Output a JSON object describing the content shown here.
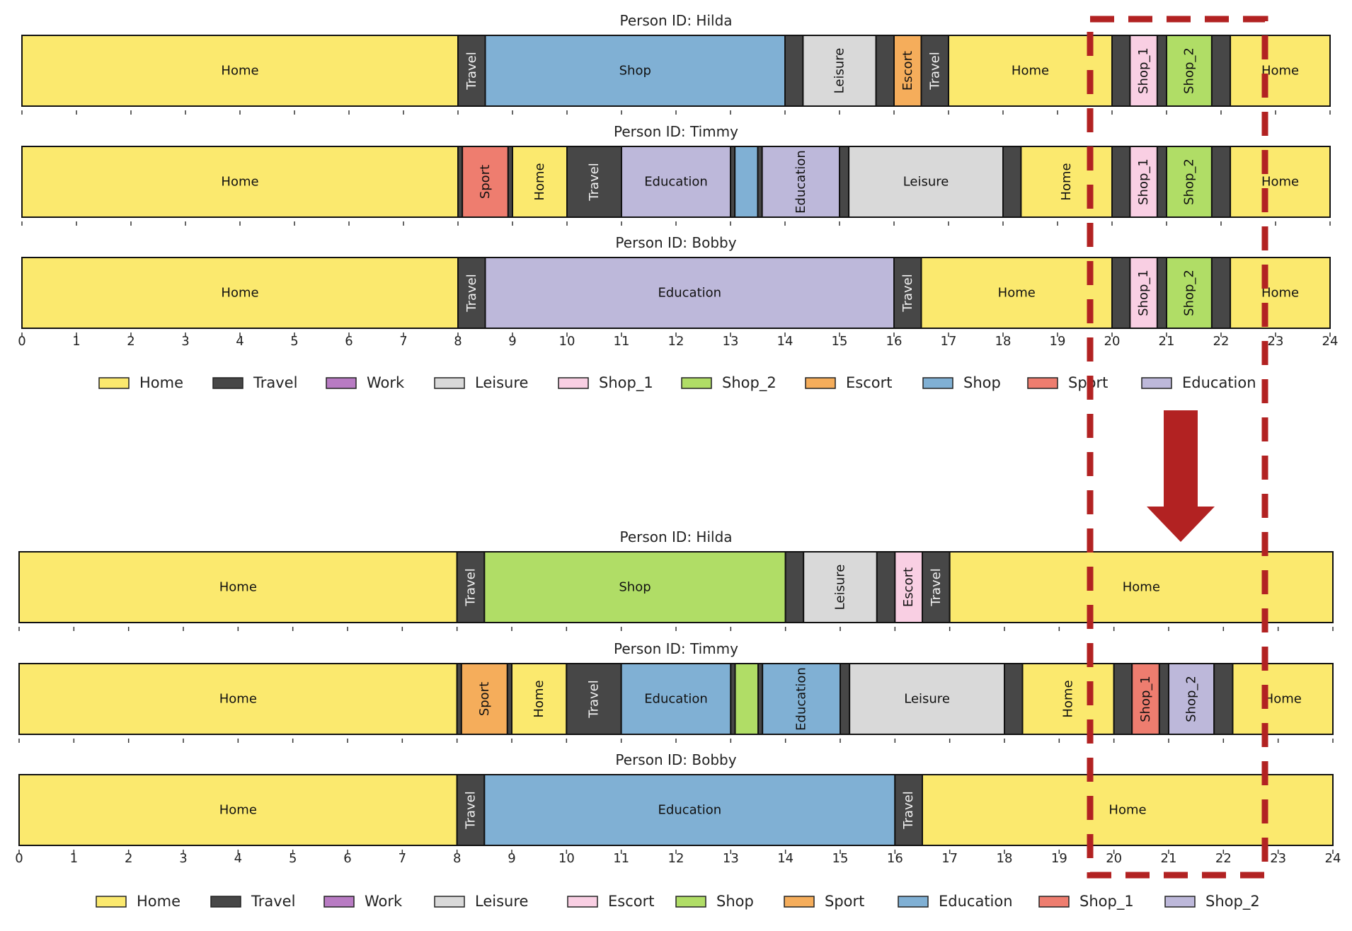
{
  "chart_data": [
    {
      "type": "gantt",
      "x_ticks": [
        "0",
        "1",
        "2",
        "3",
        "4",
        "5",
        "6",
        "7",
        "8",
        "9",
        "10",
        "11",
        "12",
        "13",
        "14",
        "15",
        "16",
        "17",
        "18",
        "19",
        "20",
        "21",
        "22",
        "23",
        "24"
      ],
      "xlim": [
        0,
        24
      ],
      "legend": [
        {
          "label": "Home",
          "color": "#fbe96e"
        },
        {
          "label": "Travel",
          "color": "#474747"
        },
        {
          "label": "Work",
          "color": "#b87bc3"
        },
        {
          "label": "Leisure",
          "color": "#d9d9d9"
        },
        {
          "label": "Shop_1",
          "color": "#f9cfe3"
        },
        {
          "label": "Shop_2",
          "color": "#b0dd66"
        },
        {
          "label": "Escort",
          "color": "#f5ad5b"
        },
        {
          "label": "Shop",
          "color": "#80b0d4"
        },
        {
          "label": "Sport",
          "color": "#ee7d6f"
        },
        {
          "label": "Education",
          "color": "#bdb8da"
        }
      ],
      "rows": [
        {
          "title": "Person ID: Hilda",
          "segments": [
            {
              "act": "Home",
              "label": "Home",
              "start": 0,
              "end": 8
            },
            {
              "act": "Travel",
              "label": "Travel",
              "start": 8,
              "end": 8.5
            },
            {
              "act": "Shop",
              "label": "Shop",
              "start": 8.5,
              "end": 14
            },
            {
              "act": "Travel",
              "label": "",
              "start": 14,
              "end": 14.33
            },
            {
              "act": "Leisure",
              "label": "Leisure",
              "start": 14.33,
              "end": 15.67
            },
            {
              "act": "Travel",
              "label": "",
              "start": 15.67,
              "end": 16
            },
            {
              "act": "Escort",
              "label": "Escort",
              "start": 16,
              "end": 16.5
            },
            {
              "act": "Travel",
              "label": "Travel",
              "start": 16.5,
              "end": 17
            },
            {
              "act": "Home",
              "label": "Home",
              "start": 17,
              "end": 20
            },
            {
              "act": "Travel",
              "label": "",
              "start": 20,
              "end": 20.33
            },
            {
              "act": "Shop_1",
              "label": "Shop_1",
              "start": 20.33,
              "end": 20.83
            },
            {
              "act": "Travel",
              "label": "",
              "start": 20.83,
              "end": 21
            },
            {
              "act": "Shop_2",
              "label": "Shop_2",
              "start": 21,
              "end": 21.83
            },
            {
              "act": "Travel",
              "label": "",
              "start": 21.83,
              "end": 22.17
            },
            {
              "act": "Home",
              "label": "Home",
              "start": 22.17,
              "end": 24
            }
          ]
        },
        {
          "title": "Person ID: Timmy",
          "segments": [
            {
              "act": "Home",
              "label": "Home",
              "start": 0,
              "end": 8
            },
            {
              "act": "Travel",
              "label": "",
              "start": 8,
              "end": 8.08
            },
            {
              "act": "Sport",
              "label": "Sport",
              "start": 8.08,
              "end": 8.92
            },
            {
              "act": "Travel",
              "label": "",
              "start": 8.92,
              "end": 9
            },
            {
              "act": "Home",
              "label": "Home",
              "start": 9,
              "end": 10
            },
            {
              "act": "Travel",
              "label": "Travel",
              "start": 10,
              "end": 11
            },
            {
              "act": "Education",
              "label": "Education",
              "start": 11,
              "end": 13
            },
            {
              "act": "Travel",
              "label": "",
              "start": 13,
              "end": 13.08
            },
            {
              "act": "Shop",
              "label": "",
              "start": 13.08,
              "end": 13.5
            },
            {
              "act": "Travel",
              "label": "",
              "start": 13.5,
              "end": 13.58
            },
            {
              "act": "Education",
              "label": "Education",
              "start": 13.58,
              "end": 15
            },
            {
              "act": "Travel",
              "label": "",
              "start": 15,
              "end": 15.17
            },
            {
              "act": "Leisure",
              "label": "Leisure",
              "start": 15.17,
              "end": 18
            },
            {
              "act": "Travel",
              "label": "",
              "start": 18,
              "end": 18.33
            },
            {
              "act": "Home",
              "label": "Home",
              "start": 18.33,
              "end": 20
            },
            {
              "act": "Travel",
              "label": "",
              "start": 20,
              "end": 20.33
            },
            {
              "act": "Shop_1",
              "label": "Shop_1",
              "start": 20.33,
              "end": 20.83
            },
            {
              "act": "Travel",
              "label": "",
              "start": 20.83,
              "end": 21
            },
            {
              "act": "Shop_2",
              "label": "Shop_2",
              "start": 21,
              "end": 21.83
            },
            {
              "act": "Travel",
              "label": "",
              "start": 21.83,
              "end": 22.17
            },
            {
              "act": "Home",
              "label": "Home",
              "start": 22.17,
              "end": 24
            }
          ]
        },
        {
          "title": "Person ID: Bobby",
          "segments": [
            {
              "act": "Home",
              "label": "Home",
              "start": 0,
              "end": 8
            },
            {
              "act": "Travel",
              "label": "Travel",
              "start": 8,
              "end": 8.5
            },
            {
              "act": "Education",
              "label": "Education",
              "start": 8.5,
              "end": 16
            },
            {
              "act": "Travel",
              "label": "Travel",
              "start": 16,
              "end": 16.5
            },
            {
              "act": "Home",
              "label": "Home",
              "start": 16.5,
              "end": 20
            },
            {
              "act": "Travel",
              "label": "",
              "start": 20,
              "end": 20.33
            },
            {
              "act": "Shop_1",
              "label": "Shop_1",
              "start": 20.33,
              "end": 20.83
            },
            {
              "act": "Travel",
              "label": "",
              "start": 20.83,
              "end": 21
            },
            {
              "act": "Shop_2",
              "label": "Shop_2",
              "start": 21,
              "end": 21.83
            },
            {
              "act": "Travel",
              "label": "",
              "start": 21.83,
              "end": 22.17
            },
            {
              "act": "Home",
              "label": "Home",
              "start": 22.17,
              "end": 24
            }
          ]
        }
      ]
    },
    {
      "type": "gantt",
      "x_ticks": [
        "0",
        "1",
        "2",
        "3",
        "4",
        "5",
        "6",
        "7",
        "8",
        "9",
        "10",
        "11",
        "12",
        "13",
        "14",
        "15",
        "16",
        "17",
        "18",
        "19",
        "20",
        "21",
        "22",
        "23",
        "24"
      ],
      "xlim": [
        0,
        24
      ],
      "legend": [
        {
          "label": "Home",
          "color": "#fbe96e"
        },
        {
          "label": "Travel",
          "color": "#474747"
        },
        {
          "label": "Work",
          "color": "#b87bc3"
        },
        {
          "label": "Leisure",
          "color": "#d9d9d9"
        },
        {
          "label": "Escort",
          "color": "#f9cfe3"
        },
        {
          "label": "Shop",
          "color": "#b0dd66"
        },
        {
          "label": "Sport",
          "color": "#f5ad5b"
        },
        {
          "label": "Education",
          "color": "#80b0d4"
        },
        {
          "label": "Shop_1",
          "color": "#ee7d6f"
        },
        {
          "label": "Shop_2",
          "color": "#bdb8da"
        }
      ],
      "rows": [
        {
          "title": "Person ID: Hilda",
          "segments": [
            {
              "act": "Home",
              "label": "Home",
              "start": 0,
              "end": 8
            },
            {
              "act": "Travel",
              "label": "Travel",
              "start": 8,
              "end": 8.5
            },
            {
              "act": "Shop",
              "label": "Shop",
              "start": 8.5,
              "end": 14
            },
            {
              "act": "Travel",
              "label": "",
              "start": 14,
              "end": 14.33
            },
            {
              "act": "Leisure",
              "label": "Leisure",
              "start": 14.33,
              "end": 15.67
            },
            {
              "act": "Travel",
              "label": "",
              "start": 15.67,
              "end": 16
            },
            {
              "act": "Escort",
              "label": "Escort",
              "start": 16,
              "end": 16.5
            },
            {
              "act": "Travel",
              "label": "Travel",
              "start": 16.5,
              "end": 17
            },
            {
              "act": "Home",
              "label": "Home",
              "start": 17,
              "end": 24
            }
          ]
        },
        {
          "title": "Person ID: Timmy",
          "segments": [
            {
              "act": "Home",
              "label": "Home",
              "start": 0,
              "end": 8
            },
            {
              "act": "Travel",
              "label": "",
              "start": 8,
              "end": 8.08
            },
            {
              "act": "Sport",
              "label": "Sport",
              "start": 8.08,
              "end": 8.92
            },
            {
              "act": "Travel",
              "label": "",
              "start": 8.92,
              "end": 9
            },
            {
              "act": "Home",
              "label": "Home",
              "start": 9,
              "end": 10
            },
            {
              "act": "Travel",
              "label": "Travel",
              "start": 10,
              "end": 11
            },
            {
              "act": "Education",
              "label": "Education",
              "start": 11,
              "end": 13
            },
            {
              "act": "Travel",
              "label": "",
              "start": 13,
              "end": 13.08
            },
            {
              "act": "Shop",
              "label": "",
              "start": 13.08,
              "end": 13.5
            },
            {
              "act": "Travel",
              "label": "",
              "start": 13.5,
              "end": 13.58
            },
            {
              "act": "Education",
              "label": "Education",
              "start": 13.58,
              "end": 15
            },
            {
              "act": "Travel",
              "label": "",
              "start": 15,
              "end": 15.17
            },
            {
              "act": "Leisure",
              "label": "Leisure",
              "start": 15.17,
              "end": 18
            },
            {
              "act": "Travel",
              "label": "",
              "start": 18,
              "end": 18.33
            },
            {
              "act": "Home",
              "label": "Home",
              "start": 18.33,
              "end": 20
            },
            {
              "act": "Travel",
              "label": "",
              "start": 20,
              "end": 20.33
            },
            {
              "act": "Shop_1",
              "label": "Shop_1",
              "start": 20.33,
              "end": 20.83
            },
            {
              "act": "Travel",
              "label": "",
              "start": 20.83,
              "end": 21
            },
            {
              "act": "Shop_2",
              "label": "Shop_2",
              "start": 21,
              "end": 21.83
            },
            {
              "act": "Travel",
              "label": "",
              "start": 21.83,
              "end": 22.17
            },
            {
              "act": "Home",
              "label": "Home",
              "start": 22.17,
              "end": 24
            }
          ]
        },
        {
          "title": "Person ID: Bobby",
          "segments": [
            {
              "act": "Home",
              "label": "Home",
              "start": 0,
              "end": 8
            },
            {
              "act": "Travel",
              "label": "Travel",
              "start": 8,
              "end": 8.5
            },
            {
              "act": "Education",
              "label": "Education",
              "start": 8.5,
              "end": 16
            },
            {
              "act": "Travel",
              "label": "Travel",
              "start": 16,
              "end": 16.5
            },
            {
              "act": "Home",
              "label": "Home",
              "start": 16.5,
              "end": 24
            }
          ]
        }
      ]
    }
  ],
  "annotations": {
    "highlight_box_color": "#b22222",
    "arrow_color": "#b22222"
  }
}
